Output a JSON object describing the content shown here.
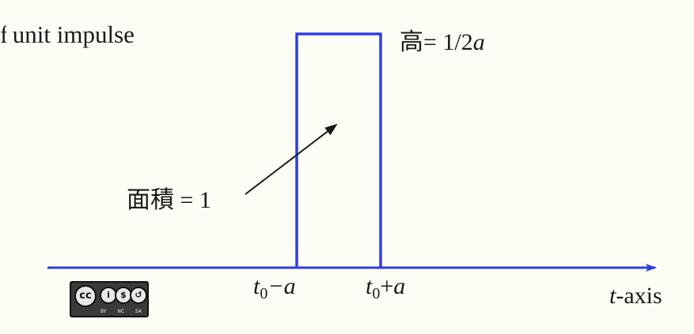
{
  "heading": {
    "text": "unit impulse"
  },
  "labels": {
    "height_prefix": "高= 1/2",
    "height_var": "a",
    "area": "面積 = 1",
    "left_t": "t",
    "left_sub": "0",
    "left_rest": "−a",
    "right_t": "t",
    "right_sub": "0",
    "right_op": "+",
    "right_var": "a",
    "axis_t": "t",
    "axis_rest": "-axis"
  },
  "license_badge": {
    "symbols": [
      "cc",
      "by",
      "nc",
      "sa"
    ],
    "glyphs": [
      "cc",
      "i",
      "$",
      "↺"
    ],
    "tags": [
      "BY",
      "NC",
      "SA"
    ]
  },
  "colors": {
    "background": "#fdfdf5",
    "pulse": "#2f3ee0",
    "axis": "#2f3ee0",
    "arrow": "#1a1a1a"
  }
}
